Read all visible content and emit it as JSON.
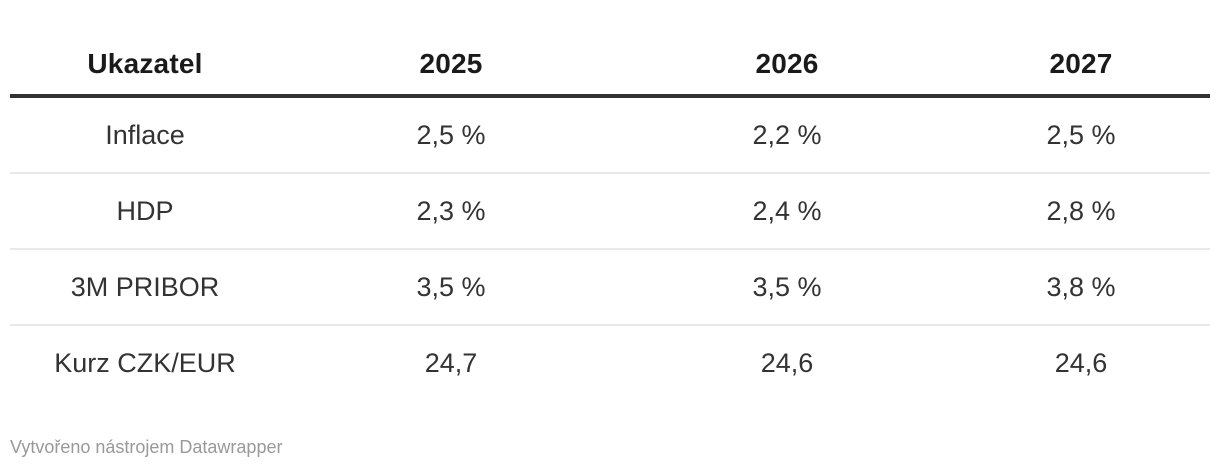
{
  "chart_data": {
    "type": "table",
    "title": "",
    "columns": [
      "Ukazatel",
      "2025",
      "2026",
      "2027"
    ],
    "rows": [
      [
        "Inflace",
        "2,5 %",
        "2,2 %",
        "2,5 %"
      ],
      [
        "HDP",
        "2,3 %",
        "2,4 %",
        "2,8 %"
      ],
      [
        "3M PRIBOR",
        "3,5 %",
        "3,5 %",
        "3,8 %"
      ],
      [
        "Kurz CZK/EUR",
        "24,7",
        "24,6",
        "24,6"
      ]
    ],
    "layout_hints": {
      "header_rule": "thick dark line under header row",
      "row_dividers": "thin light gray lines between data rows",
      "alignment": "all cells centered",
      "grid": "horizontal only"
    }
  },
  "footer": {
    "attribution": "Vytvořeno nástrojem Datawrapper"
  },
  "colors": {
    "background": "#ffffff",
    "header_text": "#1a1a1a",
    "cell_text": "#333333",
    "header_rule": "#333333",
    "row_divider": "#e9e9e9",
    "footer_text": "#999999"
  }
}
